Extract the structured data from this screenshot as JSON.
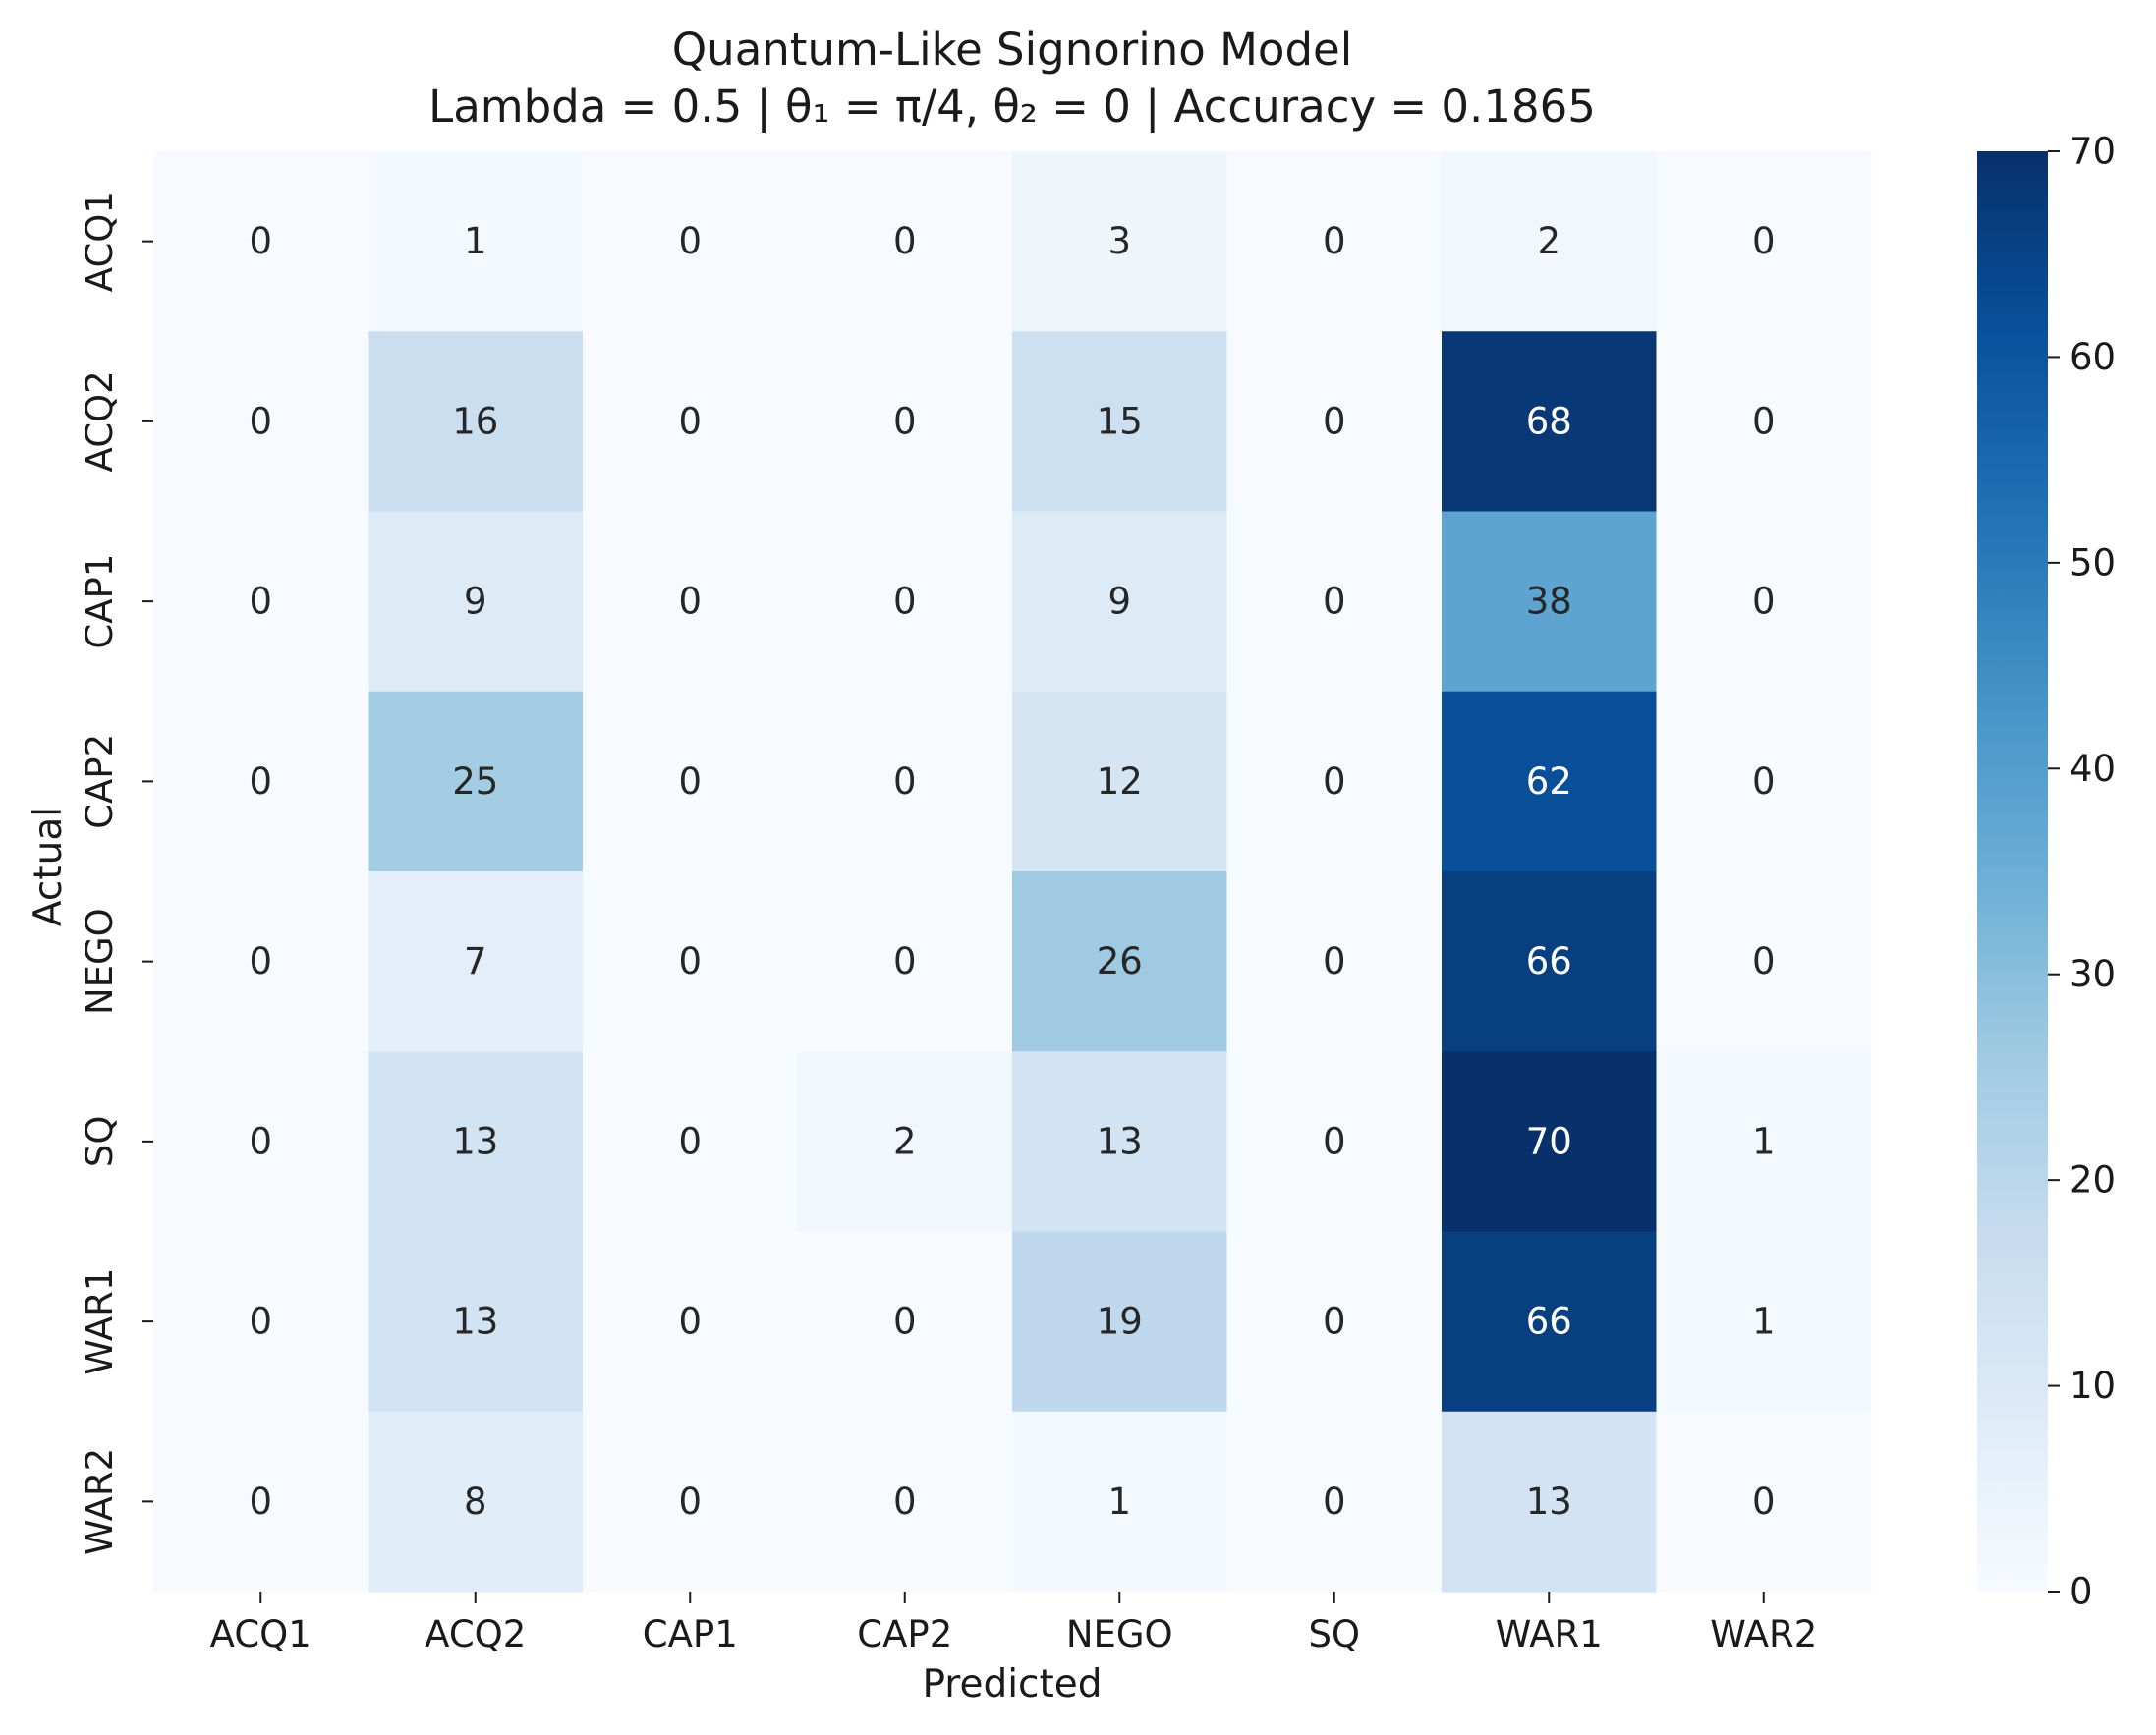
{
  "chart_data": {
    "type": "heatmap",
    "title": "Quantum-Like Signorino Model",
    "subtitle": "Lambda = 0.5 | θ₁ = π/4, θ₂ = 0  | Accuracy = 0.1865",
    "xlabel": "Predicted",
    "ylabel": "Actual",
    "x_categories": [
      "ACQ1",
      "ACQ2",
      "CAP1",
      "CAP2",
      "NEGO",
      "SQ",
      "WAR1",
      "WAR2"
    ],
    "y_categories": [
      "ACQ1",
      "ACQ2",
      "CAP1",
      "CAP2",
      "NEGO",
      "SQ",
      "WAR1",
      "WAR2"
    ],
    "values": [
      [
        0,
        1,
        0,
        0,
        3,
        0,
        2,
        0
      ],
      [
        0,
        16,
        0,
        0,
        15,
        0,
        68,
        0
      ],
      [
        0,
        9,
        0,
        0,
        9,
        0,
        38,
        0
      ],
      [
        0,
        25,
        0,
        0,
        12,
        0,
        62,
        0
      ],
      [
        0,
        7,
        0,
        0,
        26,
        0,
        66,
        0
      ],
      [
        0,
        13,
        0,
        2,
        13,
        0,
        70,
        1
      ],
      [
        0,
        13,
        0,
        0,
        19,
        0,
        66,
        1
      ],
      [
        0,
        8,
        0,
        0,
        1,
        0,
        13,
        0
      ]
    ],
    "colormap": "Blues",
    "vmin": 0,
    "vmax": 70,
    "colorbar_ticks": [
      0,
      10,
      20,
      30,
      40,
      50,
      60,
      70
    ],
    "annotations": true,
    "grid": false,
    "colorbar_position": "right",
    "colors": {
      "scale": [
        "#f7fbff",
        "#deebf7",
        "#c6dbef",
        "#9ecae1",
        "#6baed6",
        "#4292c6",
        "#2171b5",
        "#08519c",
        "#08306b"
      ],
      "text_dark": "#262626",
      "text_light": "#ffffff"
    }
  }
}
